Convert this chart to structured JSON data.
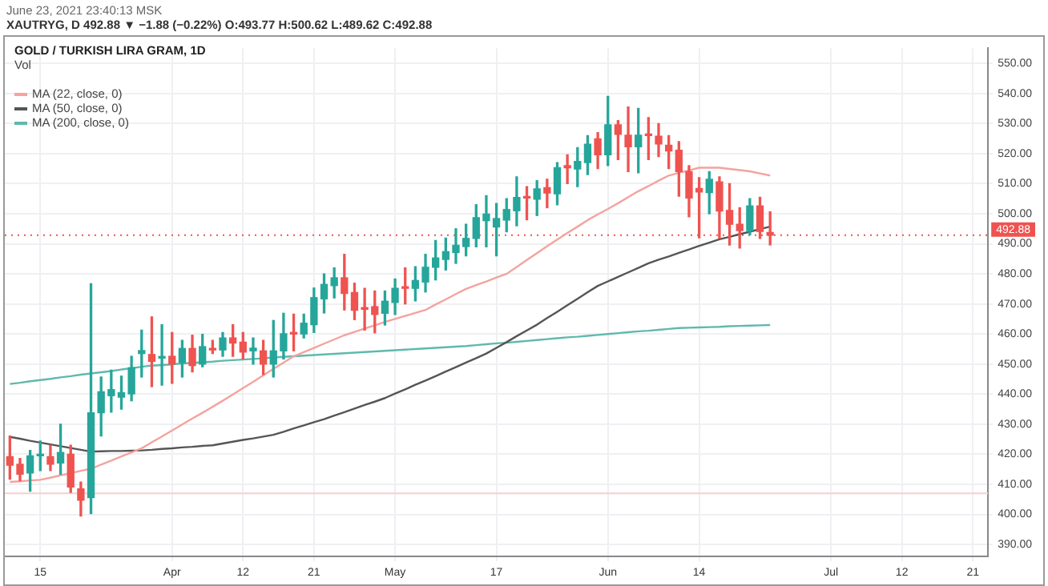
{
  "chart_data": {
    "type": "candlestick",
    "title": "GOLD / TURKISH LIRA GRAM, 1D",
    "subtitle": "XAUTRYG, D 492.88 ▼ −1.88 (−0.22%) O:493.77 H:500.62 L:489.62 C:492.88",
    "annotations": [
      "June 23, 2021 23:40:13 MSK",
      "Vol"
    ],
    "categories": [
      null,
      null,
      null,
      "15",
      null,
      null,
      null,
      null,
      null,
      null,
      null,
      null,
      null,
      null,
      null,
      null,
      "Apr",
      null,
      null,
      null,
      null,
      null,
      null,
      "12",
      null,
      null,
      null,
      null,
      null,
      null,
      "21",
      null,
      null,
      null,
      null,
      null,
      null,
      null,
      "May",
      null,
      null,
      null,
      null,
      null,
      null,
      null,
      null,
      null,
      "17",
      null,
      null,
      null,
      null,
      null,
      null,
      null,
      null,
      null,
      null,
      "Jun",
      null,
      null,
      null,
      null,
      null,
      null,
      null,
      null,
      "14",
      null,
      null,
      null,
      null,
      null,
      null,
      null,
      null,
      null,
      null,
      null,
      null,
      "Jul",
      null,
      null,
      null,
      null,
      null,
      null,
      "12",
      null,
      null,
      null,
      null,
      null,
      null,
      "21",
      null
    ],
    "ohlc": [
      [
        419.2,
        426.1,
        411.7,
        416.4
      ],
      [
        416.7,
        418.6,
        411.2,
        413.4
      ],
      [
        413.8,
        421.3,
        407.7,
        419.5
      ],
      [
        419.5,
        424.4,
        414.6,
        419.8
      ],
      [
        419.2,
        423,
        414.6,
        416.7
      ],
      [
        417.1,
        430,
        413.4,
        420.6
      ],
      [
        420,
        423,
        407.3,
        409.1
      ],
      [
        408.5,
        410.8,
        399.5,
        404.7
      ],
      [
        405.6,
        476.7,
        400.3,
        433.8
      ],
      [
        433.8,
        445.7,
        426.1,
        440.8
      ],
      [
        439.5,
        448,
        434,
        441.5
      ],
      [
        439,
        446,
        435,
        440.5
      ],
      [
        440.1,
        452.6,
        437.8,
        448.8
      ],
      [
        453.5,
        461.3,
        445.7,
        454.5
      ],
      [
        453.2,
        465.7,
        442.5,
        450.9
      ],
      [
        452,
        463.1,
        443,
        452.3
      ],
      [
        452.6,
        460.5,
        443.6,
        450
      ],
      [
        450.5,
        457.9,
        445.7,
        455.2
      ],
      [
        455.2,
        459.6,
        447.4,
        449.5
      ],
      [
        450,
        459.9,
        449.1,
        455.8
      ],
      [
        455.2,
        457.9,
        453.5,
        454.7
      ],
      [
        454.7,
        460.5,
        452.6,
        458.7
      ],
      [
        458.7,
        463.1,
        452.6,
        457
      ],
      [
        457.3,
        460.5,
        451.7,
        454
      ],
      [
        454.4,
        458.7,
        450,
        455.3
      ],
      [
        454.4,
        457.9,
        446.5,
        450
      ],
      [
        450,
        464.5,
        445.7,
        454.4
      ],
      [
        454.4,
        466.9,
        451.7,
        460.1
      ],
      [
        460.5,
        466.6,
        454.4,
        460
      ],
      [
        460,
        466.6,
        458.7,
        463.6
      ],
      [
        463.1,
        475.3,
        460.5,
        472.1
      ],
      [
        471.7,
        480,
        467,
        476.5
      ],
      [
        476.1,
        482,
        472,
        478.7
      ],
      [
        478.7,
        486.5,
        468,
        473.5
      ],
      [
        473.8,
        476.9,
        464.8,
        467.9
      ],
      [
        468.8,
        475.2,
        461.3,
        468.2
      ],
      [
        469.1,
        474.3,
        460.4,
        466.5
      ],
      [
        466.9,
        474.3,
        463,
        470.9
      ],
      [
        470.5,
        478.3,
        466.5,
        475.2
      ],
      [
        475.6,
        482,
        470,
        475.2
      ],
      [
        475.2,
        482.4,
        471,
        477.8
      ],
      [
        477.3,
        486.5,
        474,
        482.2
      ],
      [
        482.2,
        491.1,
        478,
        485.3
      ],
      [
        484.8,
        491.9,
        481.3,
        487.4
      ],
      [
        487.1,
        495,
        483.5,
        489.5
      ],
      [
        489.1,
        496.5,
        486,
        491.8
      ],
      [
        491.8,
        503,
        489,
        498.7
      ],
      [
        497.7,
        506,
        489,
        499.9
      ],
      [
        495.6,
        503.4,
        486,
        498.4
      ],
      [
        497.9,
        505,
        494,
        501.4
      ],
      [
        501,
        512.3,
        496,
        505.4
      ],
      [
        505.7,
        509,
        498,
        505.2
      ],
      [
        504.8,
        511,
        499.4,
        508.3
      ],
      [
        508.7,
        511.5,
        502,
        506.9
      ],
      [
        506.6,
        517,
        503,
        515.3
      ],
      [
        516,
        519.6,
        510,
        515.3
      ],
      [
        514.9,
        522,
        509,
        517.4
      ],
      [
        517,
        526,
        513,
        523.1
      ],
      [
        524.9,
        527,
        515,
        519.6
      ],
      [
        519.6,
        539,
        516,
        529.6
      ],
      [
        529.6,
        531,
        518,
        526.4
      ],
      [
        526.1,
        535.5,
        514,
        522.3
      ],
      [
        522.3,
        535,
        513.6,
        526.1
      ],
      [
        526.3,
        532,
        518,
        526
      ],
      [
        525.8,
        530,
        519,
        523.2
      ],
      [
        522.8,
        526,
        515,
        520.9
      ],
      [
        521.1,
        524,
        505.8,
        514
      ],
      [
        514,
        516,
        499,
        505.2
      ],
      [
        508.4,
        512,
        492,
        507.2
      ],
      [
        507,
        514,
        500,
        511.5
      ],
      [
        510.6,
        512.3,
        491.8,
        500.9
      ],
      [
        501.1,
        510,
        489.6,
        496.5
      ],
      [
        496.5,
        502,
        488.6,
        494.4
      ],
      [
        494.4,
        505,
        493,
        502.6
      ],
      [
        502.6,
        505.5,
        491.8,
        494.1
      ],
      [
        493.77,
        500.62,
        489.62,
        492.88
      ],
      null,
      null,
      null,
      null,
      null,
      null,
      null,
      null,
      null,
      null,
      null,
      null,
      null,
      null,
      null,
      null,
      null,
      null,
      null,
      null,
      null
    ],
    "series": [
      {
        "name": "MA (22, close, 0)",
        "type": "line",
        "color": "#f4a39e",
        "values": [
          410.8,
          411.0,
          411.3,
          411.5,
          412.2,
          413.0,
          413.7,
          414.5,
          415.2,
          416.6,
          417.9,
          419.3,
          420.6,
          422,
          424,
          425.9,
          427.9,
          429.9,
          431.9,
          433.8,
          435.8,
          437.8,
          439.9,
          442,
          444.1,
          446.3,
          448.4,
          450.5,
          452.6,
          454,
          455.4,
          456.8,
          458.2,
          459.6,
          460.7,
          461.8,
          462.9,
          464,
          465,
          466,
          467,
          468,
          469.8,
          471.5,
          473.3,
          475,
          476.3,
          477.5,
          478.8,
          480,
          482.3,
          484.6,
          486.9,
          489.2,
          491.4,
          493.6,
          495.7,
          497.9,
          499.8,
          501.6,
          503.5,
          505.5,
          507.5,
          509.2,
          511,
          512.7,
          513.6,
          514.4,
          515.3,
          515.3,
          515.3,
          514.9,
          514.5,
          514.1,
          513.4,
          512.7,
          null,
          null,
          null,
          null,
          null,
          null,
          null,
          null,
          null,
          null,
          null,
          null,
          null,
          null,
          null,
          null,
          null,
          null,
          null,
          null,
          null
        ]
      },
      {
        "name": "MA (50, close, 0)",
        "type": "line",
        "color": "#555555",
        "values": [
          425.8,
          425.2,
          424.5,
          423.9,
          423.3,
          422.7,
          422.1,
          421.5,
          420.9,
          421,
          421.1,
          421.1,
          421.2,
          421.3,
          421.5,
          421.8,
          422,
          422.3,
          422.5,
          422.8,
          423,
          423.6,
          424.2,
          424.8,
          425.3,
          425.9,
          426.5,
          427.5,
          428.6,
          429.6,
          430.7,
          431.7,
          432.9,
          434,
          435.2,
          436.4,
          437.5,
          438.7,
          440.2,
          441.6,
          443.1,
          444.5,
          446,
          447.5,
          449,
          450.5,
          452,
          453.5,
          455.4,
          457.3,
          459.3,
          461.2,
          463.1,
          465.3,
          467.4,
          469.6,
          471.7,
          473.9,
          476,
          477.5,
          479,
          480.5,
          482,
          483.5,
          484.7,
          485.8,
          487,
          488.1,
          489.3,
          490.4,
          491.5,
          492.3,
          493.2,
          494,
          494.9,
          495.7,
          null,
          null,
          null,
          null,
          null,
          null,
          null,
          null,
          null,
          null,
          null,
          null,
          null,
          null,
          null,
          null,
          null,
          null,
          null,
          null,
          null
        ]
      },
      {
        "name": "MA (200, close, 0)",
        "type": "line",
        "color": "#5fb9ad",
        "values": [
          443.4,
          443.8,
          444.3,
          444.7,
          445.1,
          445.6,
          446,
          446.5,
          446.9,
          447.3,
          447.7,
          448.2,
          448.6,
          449.1,
          449.5,
          449.7,
          449.9,
          450.2,
          450.4,
          450.6,
          450.8,
          451.1,
          451.3,
          451.5,
          451.7,
          451.9,
          452.2,
          452.4,
          452.6,
          452.8,
          453,
          453.2,
          453.4,
          453.6,
          453.8,
          454,
          454.2,
          454.4,
          454.6,
          454.8,
          455,
          455.2,
          455.4,
          455.6,
          455.8,
          456,
          456.3,
          456.6,
          456.9,
          457.1,
          457.4,
          457.7,
          458,
          458.3,
          458.6,
          458.9,
          459.1,
          459.4,
          459.7,
          460,
          460.3,
          460.6,
          460.9,
          461.1,
          461.4,
          461.7,
          462,
          462.1,
          462.2,
          462.3,
          462.4,
          462.6,
          462.7,
          462.8,
          462.9,
          463,
          null,
          null,
          null,
          null,
          null,
          null,
          null,
          null,
          null,
          null,
          null,
          null,
          null,
          null,
          null,
          null,
          null,
          null,
          null,
          null,
          null
        ]
      }
    ],
    "ylim": [
      386,
      555
    ],
    "yticks": [
      {
        "value": 390,
        "label": "390.00"
      },
      {
        "value": 400,
        "label": "400.00"
      },
      {
        "value": 410,
        "label": "410.00"
      },
      {
        "value": 420,
        "label": "420.00"
      },
      {
        "value": 430,
        "label": "430.00"
      },
      {
        "value": 440,
        "label": "440.00"
      },
      {
        "value": 450,
        "label": "450.00"
      },
      {
        "value": 460,
        "label": "460.00"
      },
      {
        "value": 470,
        "label": "470.00"
      },
      {
        "value": 480,
        "label": "480.00"
      },
      {
        "value": 490,
        "label": "490.00"
      },
      {
        "value": 500,
        "label": "500.00"
      },
      {
        "value": 510,
        "label": "510.00"
      },
      {
        "value": 520,
        "label": "520.00"
      },
      {
        "value": 530,
        "label": "530.00"
      },
      {
        "value": 540,
        "label": "540.00"
      },
      {
        "value": 550,
        "label": "550.00"
      }
    ],
    "ref_lines": [
      {
        "axis": "y",
        "value": 492.88,
        "label": "492.88",
        "color": "#ef5350",
        "line_style": "dotted"
      },
      {
        "axis": "y",
        "value": 407,
        "color": "#f7cfcd",
        "line_style": "solid"
      }
    ],
    "grid": true,
    "legend": "top left",
    "line_style": "solid",
    "marker": "none"
  }
}
